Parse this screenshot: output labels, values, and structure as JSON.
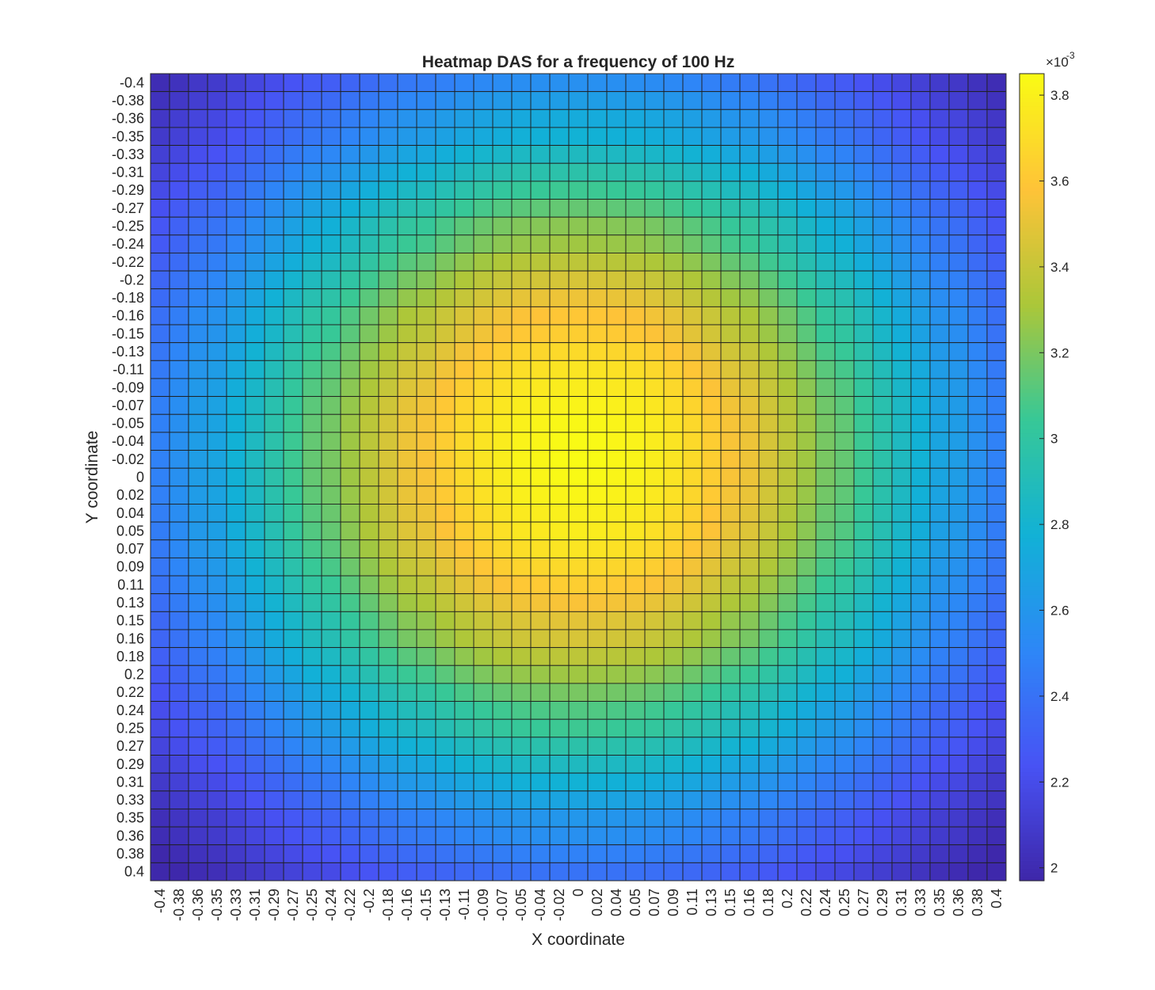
{
  "chart_data": {
    "type": "heatmap",
    "title": "Heatmap DAS for a frequency of 100 Hz",
    "xlabel": "X coordinate",
    "ylabel": "Y coordinate",
    "x_tick_labels": [
      "-0.4",
      "-0.38",
      "-0.36",
      "-0.35",
      "-0.33",
      "-0.31",
      "-0.29",
      "-0.27",
      "-0.25",
      "-0.24",
      "-0.22",
      "-0.2",
      "-0.18",
      "-0.16",
      "-0.15",
      "-0.13",
      "-0.11",
      "-0.09",
      "-0.07",
      "-0.05",
      "-0.04",
      "-0.02",
      "0",
      "0.02",
      "0.04",
      "0.05",
      "0.07",
      "0.09",
      "0.11",
      "0.13",
      "0.15",
      "0.16",
      "0.18",
      "0.2",
      "0.22",
      "0.24",
      "0.25",
      "0.27",
      "0.29",
      "0.31",
      "0.33",
      "0.35",
      "0.36",
      "0.38",
      "0.4"
    ],
    "y_tick_labels": [
      "-0.4",
      "-0.38",
      "-0.36",
      "-0.35",
      "-0.33",
      "-0.31",
      "-0.29",
      "-0.27",
      "-0.25",
      "-0.24",
      "-0.22",
      "-0.2",
      "-0.18",
      "-0.16",
      "-0.15",
      "-0.13",
      "-0.11",
      "-0.09",
      "-0.07",
      "-0.05",
      "-0.04",
      "-0.02",
      "0",
      "0.02",
      "0.04",
      "0.05",
      "0.07",
      "0.09",
      "0.11",
      "0.13",
      "0.15",
      "0.16",
      "0.18",
      "0.2",
      "0.22",
      "0.24",
      "0.25",
      "0.27",
      "0.29",
      "0.31",
      "0.33",
      "0.35",
      "0.36",
      "0.38",
      "0.4"
    ],
    "y_direction": "top-to-bottom",
    "value_model": {
      "description_of_cell_values": "values read approximately from colorbar; peak near center, lowest at corners",
      "peak": 0.00385,
      "peak_location": [
        0.0,
        -0.02
      ],
      "corner_min": 0.00198
    },
    "colorbar": {
      "range": [
        0.00197,
        0.00385
      ],
      "ticks": [
        0.002,
        0.0022,
        0.0024,
        0.0026,
        0.0028,
        0.003,
        0.0032,
        0.0034,
        0.0036,
        0.0038
      ],
      "tick_labels": [
        "2",
        "2.2",
        "2.4",
        "2.6",
        "2.8",
        "3",
        "3.2",
        "3.4",
        "3.6",
        "3.8"
      ],
      "exponent_label": "×10",
      "exponent": "-3",
      "colormap": "parula",
      "placement": "right"
    },
    "grid_lines": true
  }
}
